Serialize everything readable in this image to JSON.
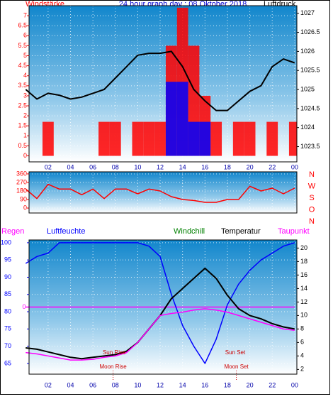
{
  "chart_data": [
    {
      "type": "line",
      "title": "24 hour graph day : 08 Oktober 2018",
      "ylabel": "Windstärke",
      "y2label": "Luftdruck",
      "x": [
        0,
        1,
        2,
        3,
        4,
        5,
        6,
        7,
        8,
        9,
        10,
        11,
        12,
        13,
        14,
        15,
        16,
        17,
        18,
        19,
        20,
        21,
        22,
        23,
        24
      ],
      "xlim": [
        0.3,
        24.2
      ],
      "xticks": [
        {
          "value": 2,
          "label": "02"
        },
        {
          "value": 4,
          "label": "04"
        },
        {
          "value": 6,
          "label": "06"
        },
        {
          "value": 8,
          "label": "08"
        },
        10,
        12,
        14,
        16,
        18,
        20,
        22,
        {
          "value": 24,
          "label": "00"
        }
      ],
      "ylim": [
        -0.3,
        7.5
      ],
      "yticks": [
        0,
        0.5,
        1,
        1.5,
        2,
        2.5,
        3,
        3.5,
        4,
        4.5,
        5,
        5.5,
        6,
        6.5,
        7
      ],
      "y2lim": [
        1023.1,
        1027.2
      ],
      "y2ticks": [
        1023.5,
        1024,
        1024.5,
        1025,
        1025.5,
        1026,
        1026.5,
        1027
      ],
      "grid": true,
      "series": [
        {
          "name": "Windstärke",
          "color": "#ff0000",
          "draw": "step",
          "values": [
            0,
            0,
            1.7,
            0,
            0,
            0,
            0,
            1.7,
            1.7,
            0,
            1.7,
            1.7,
            1.7,
            5.5,
            7.4,
            5.5,
            3,
            1.7,
            0,
            1.7,
            1.7,
            0,
            1.7,
            0,
            1.7
          ]
        },
        {
          "color": "#0000ff",
          "draw": "step",
          "values": [
            0,
            0,
            0,
            0,
            0,
            0,
            0,
            0,
            0,
            0,
            0,
            0,
            0,
            3.7,
            3.7,
            1.7,
            1.7,
            0,
            0,
            0,
            0,
            0,
            0,
            0,
            0
          ]
        },
        {
          "name": "Luftdruck",
          "color": "#000000",
          "draw": "line",
          "axis": "y2",
          "values": [
            1025.0,
            1024.75,
            1024.9,
            1024.85,
            1024.75,
            1024.8,
            1024.9,
            1025.0,
            1025.3,
            1025.6,
            1025.9,
            1025.95,
            1025.95,
            1026.0,
            1025.6,
            1025.0,
            1024.7,
            1024.45,
            1024.45,
            1024.7,
            1024.95,
            1025.1,
            1025.6,
            1025.8,
            1025.7
          ]
        }
      ]
    },
    {
      "type": "line",
      "x": [
        0,
        1,
        2,
        3,
        4,
        5,
        6,
        7,
        8,
        9,
        10,
        11,
        12,
        13,
        14,
        15,
        16,
        17,
        18,
        19,
        20,
        21,
        22,
        23,
        24
      ],
      "xlim": [
        0.3,
        24.2
      ],
      "xticks": [
        2,
        4,
        6,
        8,
        10,
        12,
        14,
        16,
        18,
        20,
        22,
        24
      ],
      "ylim": [
        -52,
        382
      ],
      "yticks": [
        0,
        90,
        180,
        270,
        360
      ],
      "compass": [
        "N",
        "W",
        "S",
        "O",
        "N"
      ],
      "grid": true,
      "series": [
        {
          "color": "#ff0000",
          "draw": "line",
          "values": [
            200,
            100,
            250,
            200,
            200,
            140,
            200,
            100,
            200,
            200,
            150,
            200,
            180,
            120,
            90,
            80,
            60,
            60,
            90,
            90,
            230,
            180,
            210,
            150,
            210
          ]
        }
      ]
    },
    {
      "type": "line",
      "x": [
        0,
        1,
        2,
        3,
        4,
        5,
        6,
        7,
        8,
        9,
        10,
        11,
        12,
        13,
        14,
        15,
        16,
        17,
        18,
        19,
        20,
        21,
        22,
        23,
        24
      ],
      "xlim": [
        0.3,
        24.2
      ],
      "xticks": [
        {
          "value": 2,
          "label": "02"
        },
        {
          "value": 4,
          "label": "04"
        },
        {
          "value": 6,
          "label": "06"
        },
        {
          "value": 8,
          "label": "08"
        },
        10,
        12,
        14,
        16,
        18,
        20,
        22,
        {
          "value": 24,
          "label": "00"
        }
      ],
      "ylim": [
        61.9,
        100.8
      ],
      "yticks": [
        65,
        70,
        75,
        80,
        85,
        90,
        95,
        100
      ],
      "y2lim": [
        1.3,
        21.2
      ],
      "y2ticks": [
        2,
        4,
        6,
        8,
        10,
        12,
        14,
        16,
        18,
        20
      ],
      "y3lim": [
        -1,
        1
      ],
      "y3ticks": [
        0
      ],
      "grid": true,
      "series": [
        {
          "name": "Regen",
          "color": "#ff00ff",
          "draw": "line",
          "axis": "y3",
          "values": [
            0,
            0,
            0,
            0,
            0,
            0,
            0,
            0,
            0,
            0,
            0,
            0,
            0,
            0,
            0,
            0,
            0,
            0,
            0,
            0,
            0,
            0,
            0,
            0,
            0
          ]
        },
        {
          "name": "Luftfeuchte",
          "color": "#0000ff",
          "draw": "line",
          "values": [
            94,
            96,
            97,
            100,
            100,
            100,
            100,
            100,
            100,
            100,
            100,
            99,
            96,
            85,
            76,
            70,
            65,
            72,
            82,
            88,
            92,
            95,
            97,
            99,
            100
          ]
        },
        {
          "name": "Windchill",
          "color": "#008000",
          "draw": "line",
          "axis": "y2",
          "values": [
            5.2,
            5,
            4.6,
            4.2,
            3.8,
            3.6,
            3.8,
            4,
            4.2,
            4.7,
            6,
            8,
            10,
            12.5,
            14,
            15.5,
            17,
            15.5,
            13,
            11,
            10,
            9.5,
            8.8,
            8.3,
            8
          ]
        },
        {
          "name": "Temperatur",
          "color": "#000000",
          "draw": "line",
          "axis": "y2",
          "values": [
            5.2,
            5,
            4.6,
            4.2,
            3.8,
            3.6,
            3.8,
            4,
            4.2,
            4.7,
            6,
            8,
            10,
            12.5,
            14,
            15.5,
            17,
            15.5,
            13,
            11,
            10,
            9.5,
            8.8,
            8.3,
            8
          ]
        },
        {
          "name": "Taupunkt",
          "color": "#ff00ff",
          "draw": "line",
          "axis": "y2",
          "values": [
            4.5,
            4.3,
            4,
            3.7,
            3.4,
            3.4,
            3.5,
            3.8,
            4,
            4.5,
            6,
            8,
            10,
            10.3,
            10.5,
            10.8,
            11,
            10.8,
            10.5,
            10,
            9.5,
            9,
            8.5,
            8,
            7.8
          ]
        }
      ],
      "annotations": [
        {
          "text": "Sun Rise",
          "x": 7.9,
          "row": 1
        },
        {
          "text": "Moon Rise",
          "x": 7.8,
          "row": 2
        },
        {
          "text": "Sun Set",
          "x": 18.7,
          "row": 1
        },
        {
          "text": "Moon Set",
          "x": 18.8,
          "row": 2
        }
      ]
    }
  ]
}
